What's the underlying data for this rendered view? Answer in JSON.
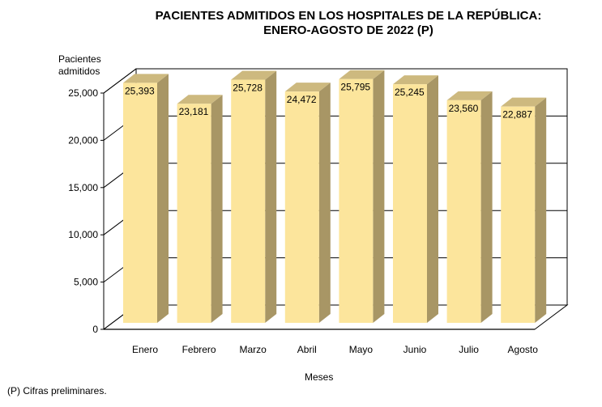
{
  "chart_data": {
    "type": "bar",
    "title": "PACIENTES ADMITIDOS EN LOS HOSPITALES DE LA REPÚBLICA:",
    "subtitle": "ENERO-AGOSTO DE 2022 (P)",
    "xlabel": "Meses",
    "ylabel": [
      "Pacientes",
      "admitidos"
    ],
    "categories": [
      "Enero",
      "Febrero",
      "Marzo",
      "Abril",
      "Mayo",
      "Junio",
      "Julio",
      "Agosto"
    ],
    "values": [
      25393,
      23181,
      25728,
      24472,
      25795,
      25245,
      23560,
      22887
    ],
    "data_labels": [
      "25,393",
      "23,181",
      "25,728",
      "24,472",
      "25,795",
      "25,245",
      "23,560",
      "22,887"
    ],
    "ylim": [
      0,
      25000
    ],
    "yticks": [
      0,
      5000,
      10000,
      15000,
      20000,
      25000
    ],
    "ytick_labels": [
      "0",
      "5,000",
      "10,000",
      "15,000",
      "20,000",
      "25,000"
    ],
    "grid": true,
    "style": "3d-column",
    "colors": {
      "front": "#FCE59C",
      "side": "#A89665",
      "top": "#CDB97F",
      "grid": "#000000"
    }
  },
  "footnote": "(P) Cifras  preliminares."
}
